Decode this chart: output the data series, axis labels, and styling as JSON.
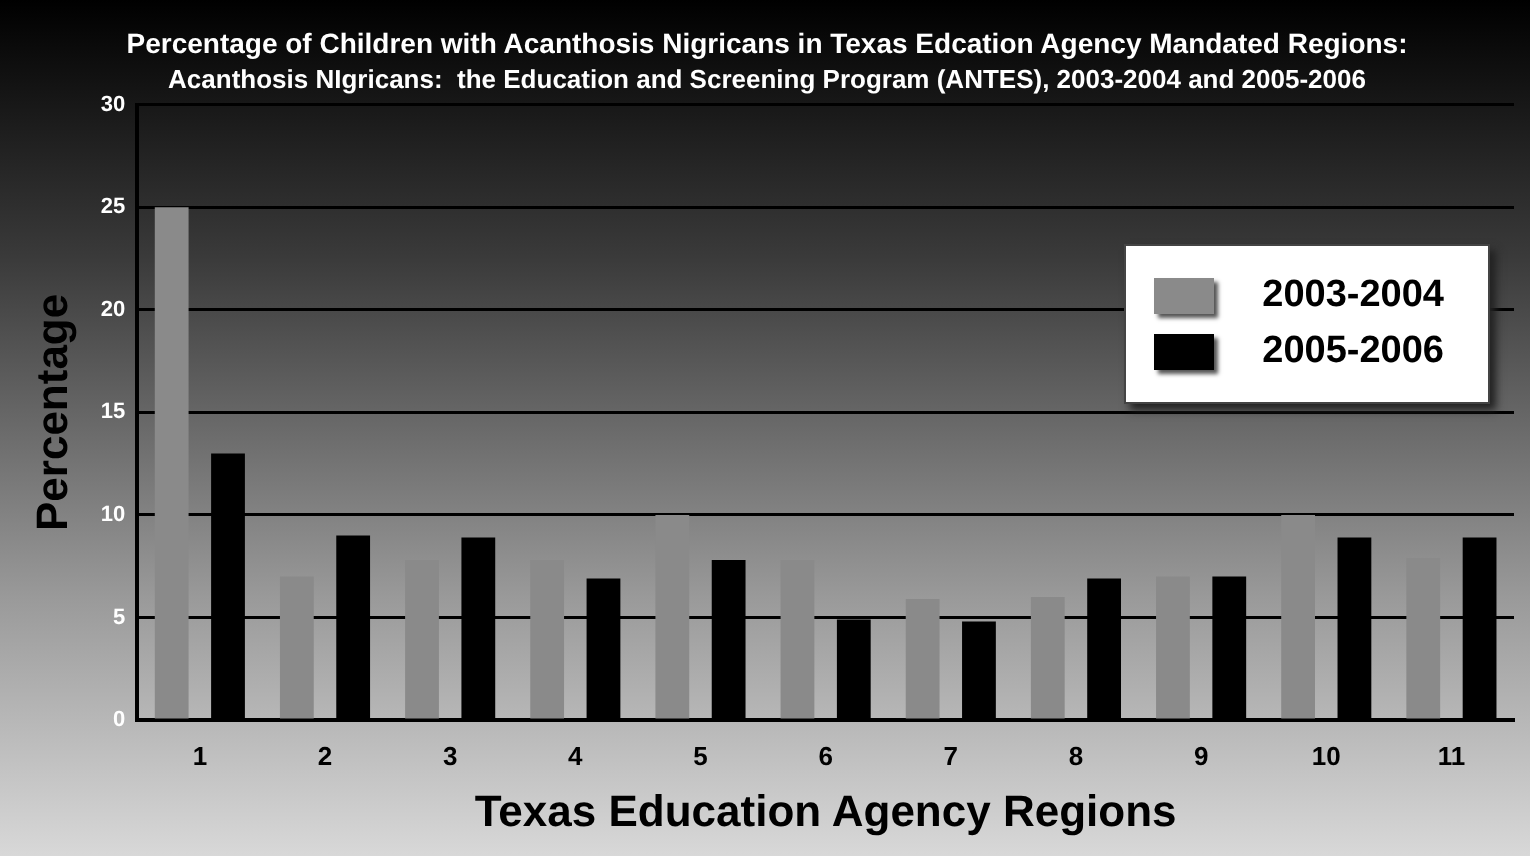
{
  "chart_data": {
    "type": "bar",
    "title": "Percentage of Children with Acanthosis Nigricans in Texas Edcation Agency Mandated Regions:",
    "subtitle": "Acanthosis NIgricans:  the Education and Screening Program (ANTES), 2003-2004 and 2005-2006",
    "xlabel": "Texas Education Agency Regions",
    "ylabel": "Percentage",
    "categories": [
      "1",
      "2",
      "3",
      "4",
      "5",
      "6",
      "7",
      "8",
      "9",
      "10",
      "11"
    ],
    "series": [
      {
        "name": "2003-2004",
        "color": "#8a8a8a",
        "values": [
          25,
          7,
          7.8,
          7.8,
          10,
          7.8,
          5.9,
          6,
          7,
          10,
          7.9
        ]
      },
      {
        "name": "2005-2006",
        "color": "#000000",
        "values": [
          13,
          9,
          8.9,
          6.9,
          7.8,
          4.9,
          4.8,
          6.9,
          7,
          8.9,
          8.9
        ]
      }
    ],
    "ylim": [
      0,
      30
    ],
    "yticks": [
      0,
      5,
      10,
      15,
      20,
      25,
      30
    ],
    "grid": "y",
    "legend": "top right"
  }
}
